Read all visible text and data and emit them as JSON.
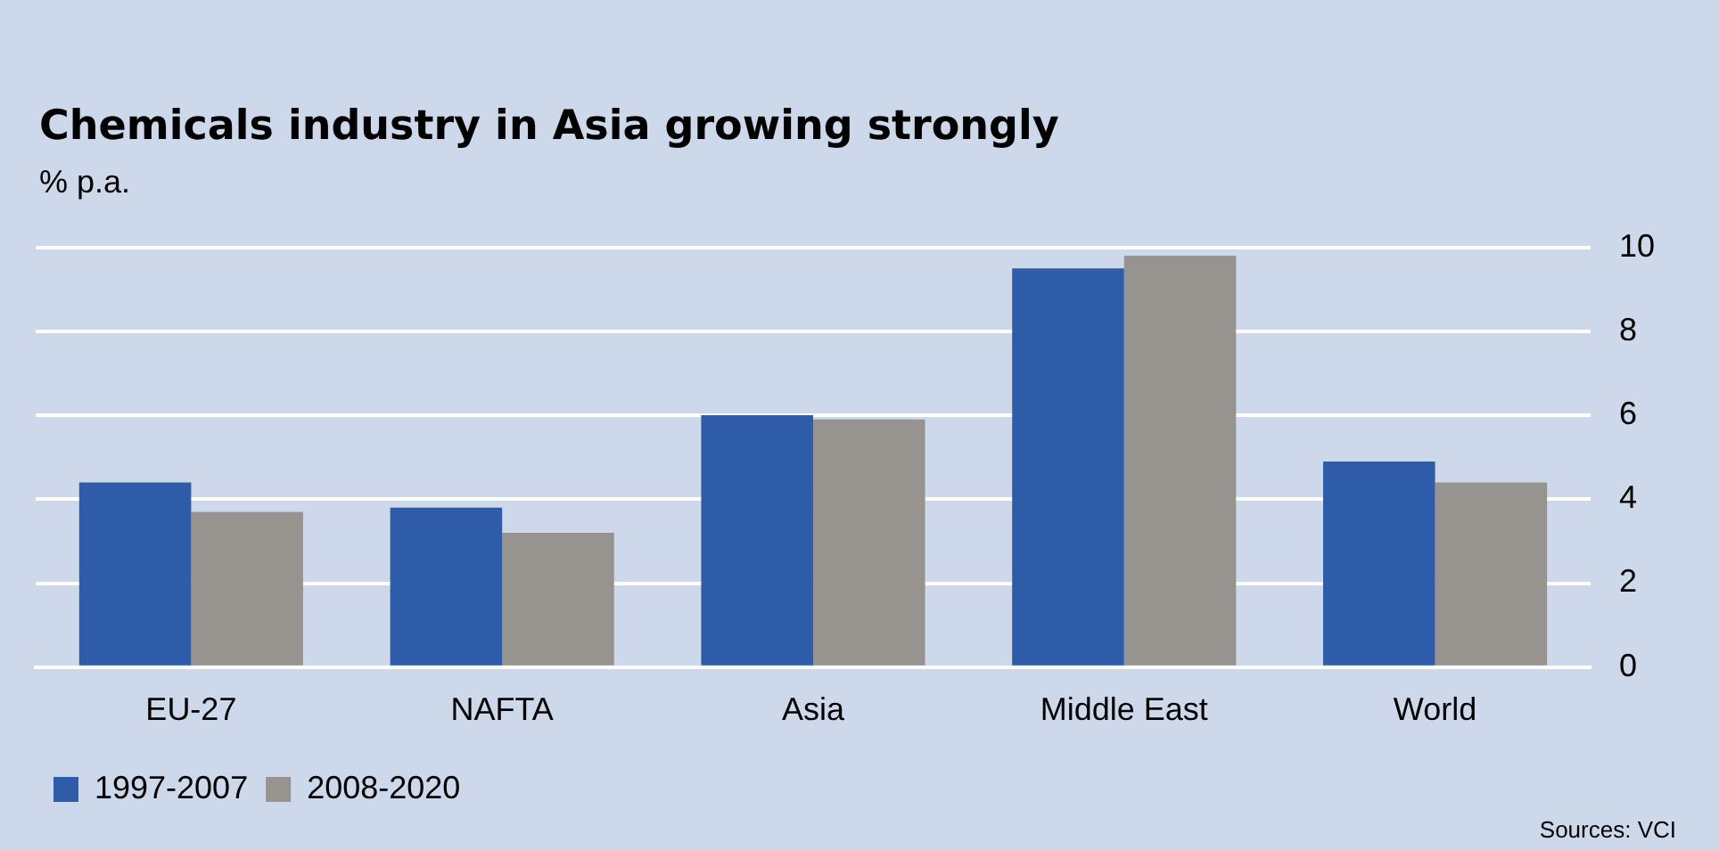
{
  "chart_data": {
    "type": "bar",
    "title": "Chemicals industry in Asia growing strongly",
    "subtitle": "% p.a.",
    "categories": [
      "EU-27",
      "NAFTA",
      "Asia",
      "Middle East",
      "World"
    ],
    "series": [
      {
        "name": "1997-2007",
        "color": "#2e5ca8",
        "values": [
          4.4,
          3.8,
          6.0,
          9.5,
          4.9
        ]
      },
      {
        "name": "2008-2020",
        "color": "#97938f",
        "values": [
          3.7,
          3.2,
          5.9,
          9.8,
          4.4
        ]
      }
    ],
    "ylim": [
      0,
      10
    ],
    "yticks": [
      0,
      2,
      4,
      6,
      8,
      10
    ],
    "grid": "y",
    "legend": "bottom left",
    "annotations": [
      "Sources: VCI"
    ]
  }
}
